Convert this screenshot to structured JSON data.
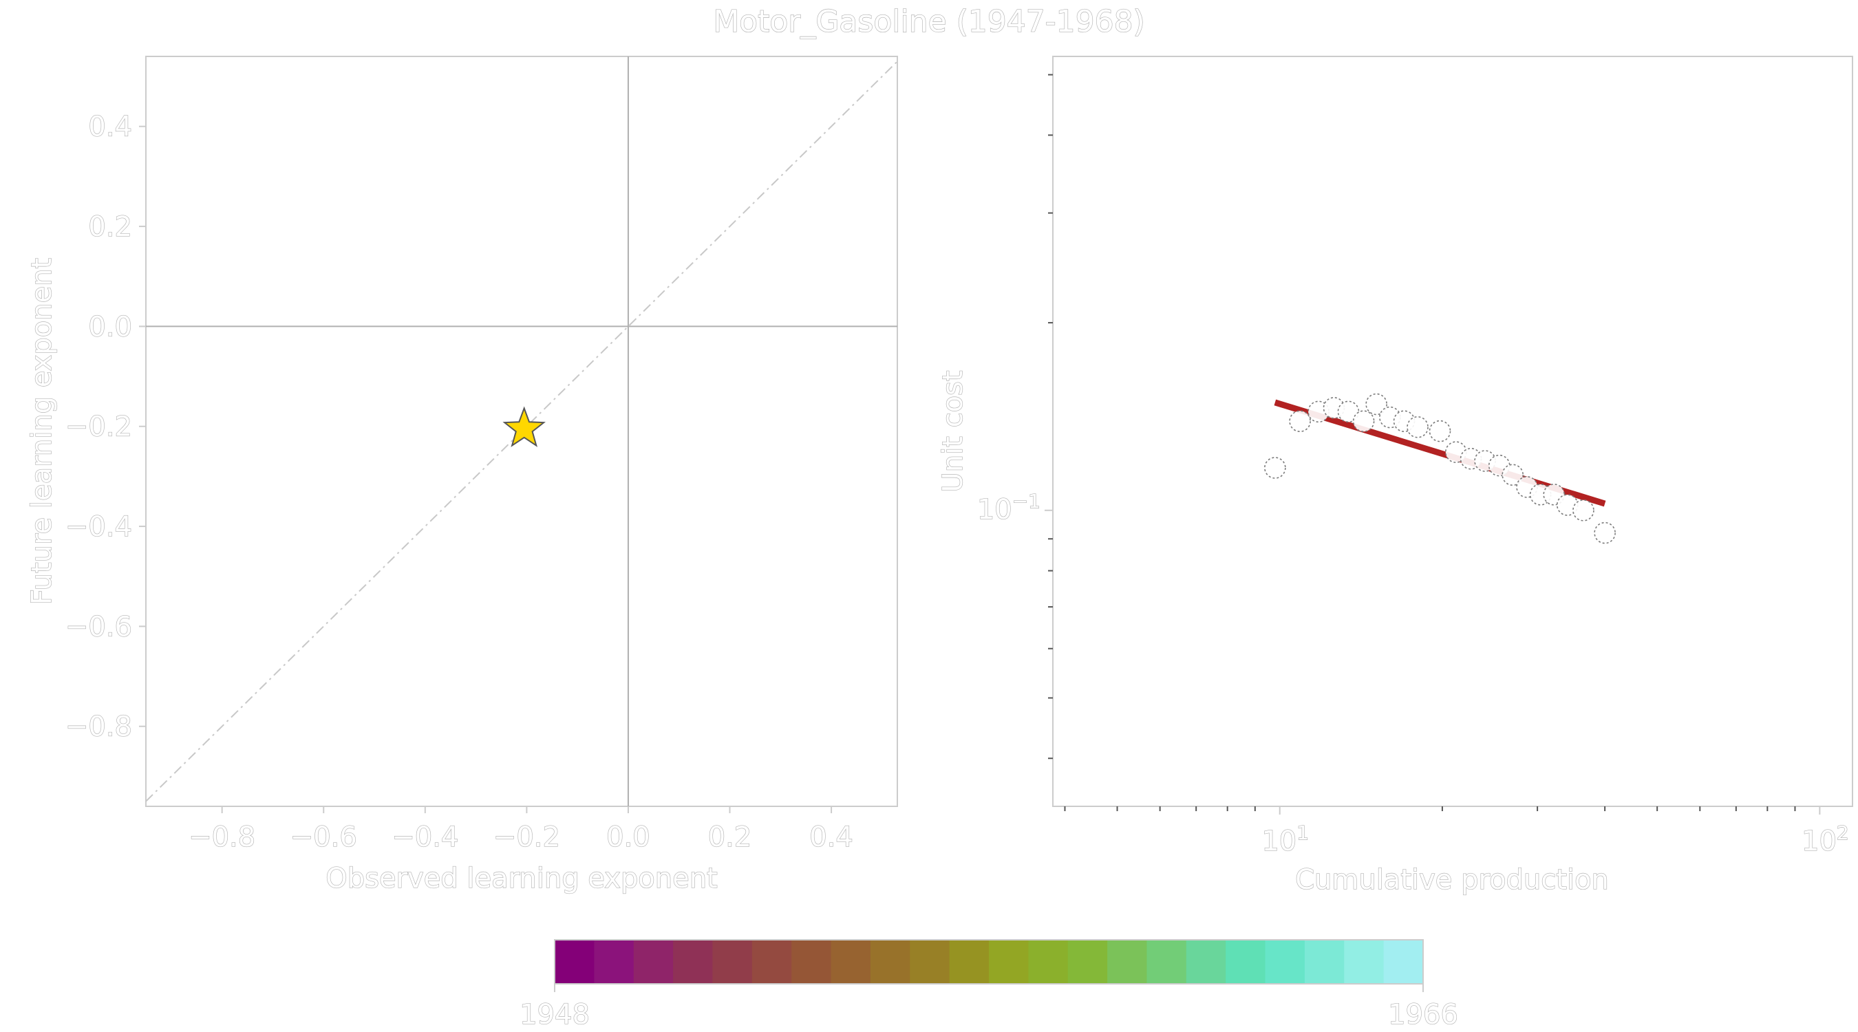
{
  "title": "Motor_Gasoline (1947-1968)",
  "chart_data": [
    {
      "type": "scatter",
      "xlabel": "Observed learning exponent",
      "ylabel": "Future learning exponent",
      "xlim": [
        -0.95,
        0.53
      ],
      "ylim": [
        -0.96,
        0.54
      ],
      "xticks": [
        "−0.8",
        "−0.6",
        "−0.4",
        "−0.2",
        "0.0",
        "0.2",
        "0.4"
      ],
      "yticks": [
        "−0.8",
        "−0.6",
        "−0.4",
        "−0.2",
        "0.0",
        "0.2",
        "0.4"
      ],
      "xtick_values": [
        -0.8,
        -0.6,
        -0.4,
        -0.2,
        0.0,
        0.2,
        0.4
      ],
      "ytick_values": [
        -0.8,
        -0.6,
        -0.4,
        -0.2,
        0.0,
        0.2,
        0.4
      ],
      "reference_lines": [
        "x = 0",
        "y = 0",
        "y = x (dashed)"
      ],
      "points": [
        {
          "x": -0.205,
          "y": -0.205,
          "marker": "star",
          "color": "#ffd700"
        }
      ],
      "grid": false
    },
    {
      "type": "scatter",
      "xlabel": "Cumulative production",
      "ylabel": "Unit cost",
      "xscale": "log",
      "yscale": "log",
      "xlim": [
        3.8,
        115
      ],
      "ylim": [
        0.0335,
        0.535
      ],
      "xticks": [
        "10^1",
        "10^2"
      ],
      "xtick_values": [
        10,
        100
      ],
      "yticks": [
        "10^-1"
      ],
      "ytick_values": [
        0.1
      ],
      "points": [
        {
          "x": 9.8,
          "y": 0.117
        },
        {
          "x": 10.9,
          "y": 0.139
        },
        {
          "x": 11.8,
          "y": 0.144
        },
        {
          "x": 12.6,
          "y": 0.146
        },
        {
          "x": 13.4,
          "y": 0.144
        },
        {
          "x": 14.3,
          "y": 0.139
        },
        {
          "x": 15.1,
          "y": 0.148
        },
        {
          "x": 16.0,
          "y": 0.141
        },
        {
          "x": 17.0,
          "y": 0.139
        },
        {
          "x": 18.0,
          "y": 0.136
        },
        {
          "x": 19.8,
          "y": 0.134
        },
        {
          "x": 21.2,
          "y": 0.124
        },
        {
          "x": 22.6,
          "y": 0.121
        },
        {
          "x": 24.0,
          "y": 0.12
        },
        {
          "x": 25.5,
          "y": 0.118
        },
        {
          "x": 27.0,
          "y": 0.114
        },
        {
          "x": 28.7,
          "y": 0.109
        },
        {
          "x": 30.4,
          "y": 0.106
        },
        {
          "x": 32.2,
          "y": 0.106
        },
        {
          "x": 34.1,
          "y": 0.102
        },
        {
          "x": 36.5,
          "y": 0.1
        },
        {
          "x": 40.0,
          "y": 0.092
        }
      ],
      "fit_line": {
        "x": [
          9.8,
          40.0
        ],
        "y": [
          0.149,
          0.1025
        ],
        "color": "#b22222"
      },
      "grid": false
    }
  ],
  "colorbar": {
    "min_label": "1948",
    "max_label": "1966",
    "colors": [
      "#840078",
      "#8b137b",
      "#8f2469",
      "#8f3156",
      "#913d4a",
      "#944a40",
      "#955636",
      "#976330",
      "#98722a",
      "#988026",
      "#969322",
      "#93a624",
      "#8bb02c",
      "#84b838",
      "#7bc259",
      "#72cd77",
      "#69d69b",
      "#5fe0b5",
      "#67e5c8",
      "#7ce9d6",
      "#92eee4",
      "#a2eef1"
    ]
  }
}
